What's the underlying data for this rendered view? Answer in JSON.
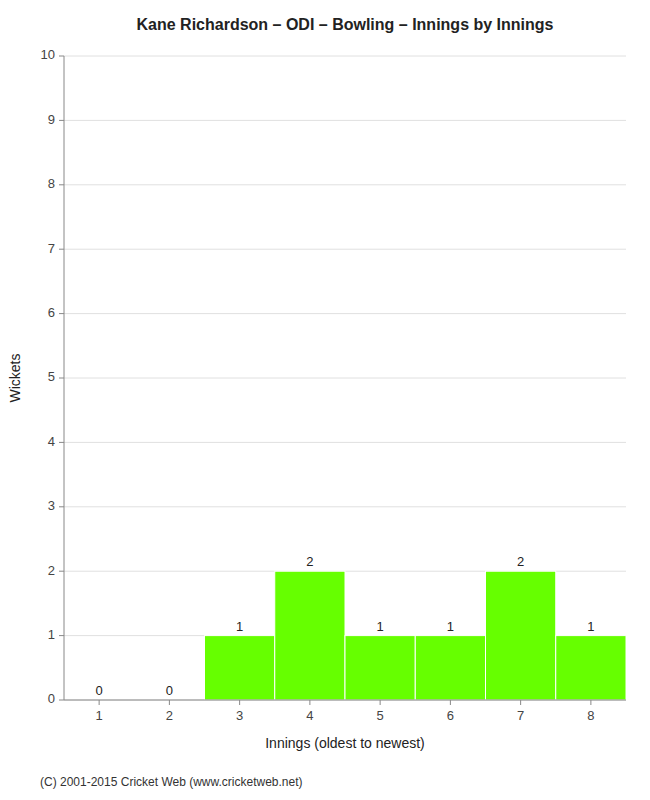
{
  "chart_data": {
    "type": "bar",
    "title": "Kane Richardson – ODI – Bowling – Innings by Innings",
    "x_label": "Innings (oldest to newest)",
    "y_label": "Wickets",
    "categories": [
      1,
      2,
      3,
      4,
      5,
      6,
      7,
      8
    ],
    "values": [
      0,
      0,
      1,
      2,
      1,
      1,
      2,
      1
    ],
    "color": "#66ff00",
    "ylim": [
      0,
      10
    ],
    "yticks": [
      0,
      1,
      2,
      3,
      4,
      5,
      6,
      7,
      8,
      9,
      10
    ],
    "grid": true,
    "data_labels": true,
    "annotations": [
      "(C) 2001-2015 Cricket Web (www.cricketweb.net)"
    ]
  }
}
